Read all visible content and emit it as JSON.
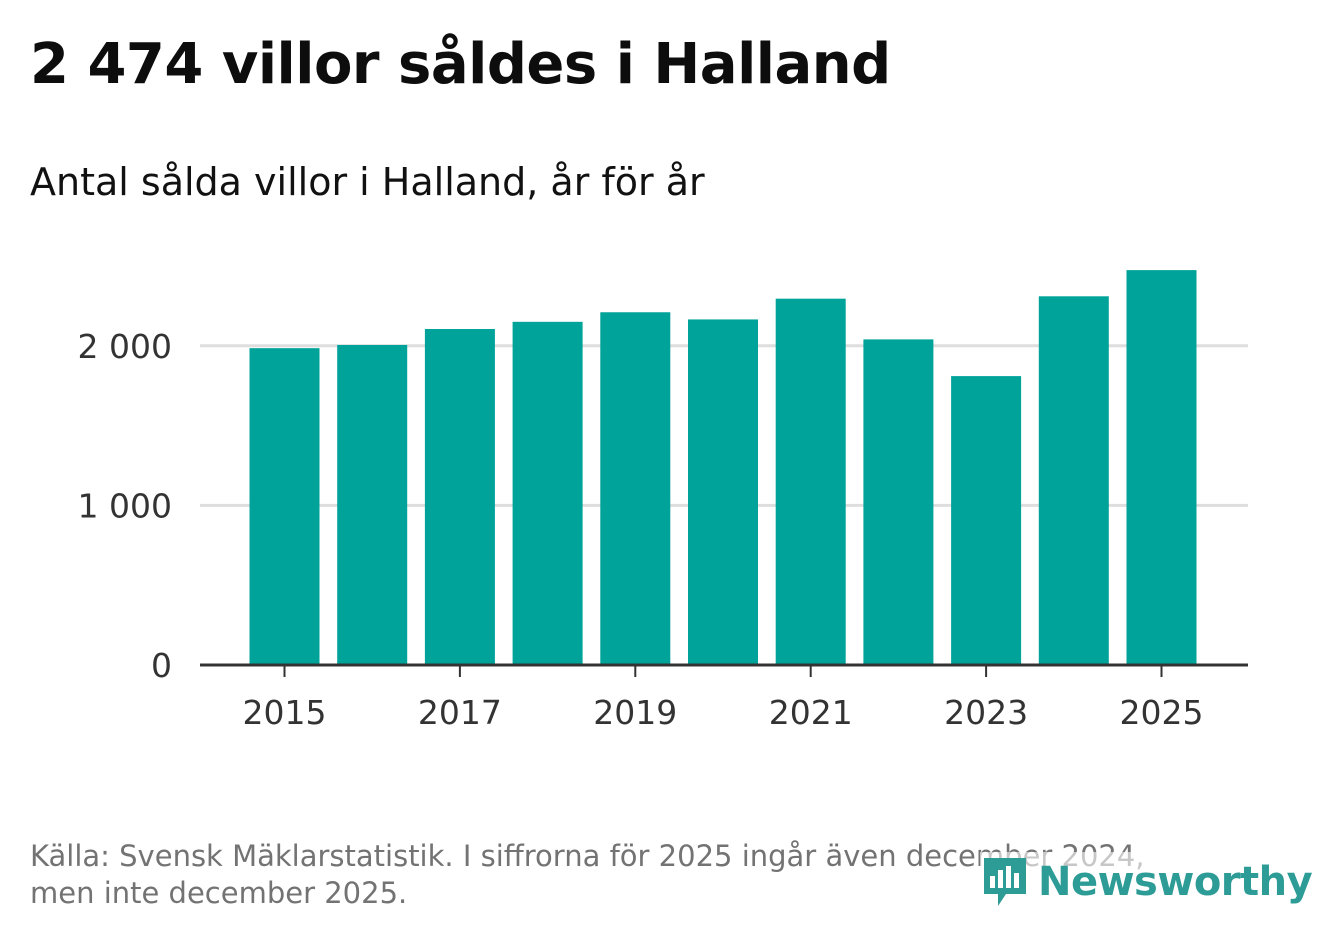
{
  "header": {
    "title": "2 474 villor såldes i Halland",
    "subtitle": "Antal sålda villor i Halland, år för år"
  },
  "chart_data": {
    "type": "bar",
    "categories": [
      "2015",
      "2016",
      "2017",
      "2018",
      "2019",
      "2020",
      "2021",
      "2022",
      "2023",
      "2024",
      "2025"
    ],
    "values": [
      1985,
      2005,
      2105,
      2150,
      2210,
      2165,
      2295,
      2040,
      1810,
      2310,
      2474
    ],
    "x_tick_labels": [
      "2015",
      "2017",
      "2019",
      "2021",
      "2023",
      "2025"
    ],
    "y_ticks": [
      0,
      1000,
      2000
    ],
    "y_tick_labels": [
      "0",
      "1 000",
      "2 000"
    ],
    "ylim": [
      0,
      2600
    ],
    "grid": true,
    "bar_color": "#00a39a",
    "gridline_color": "#dedede",
    "axis_color": "#333333",
    "xlabel": "",
    "ylabel": ""
  },
  "footer": {
    "source_line1": "Källa: Svensk Mäklarstatistik. I siffrorna för 2025 ingår även december 2024,",
    "source_line2": "men inte december 2025."
  },
  "logo": {
    "text": "Newsworthy",
    "icon": "newsworthy-chart-bubble-icon",
    "color": "#2e9c96"
  }
}
